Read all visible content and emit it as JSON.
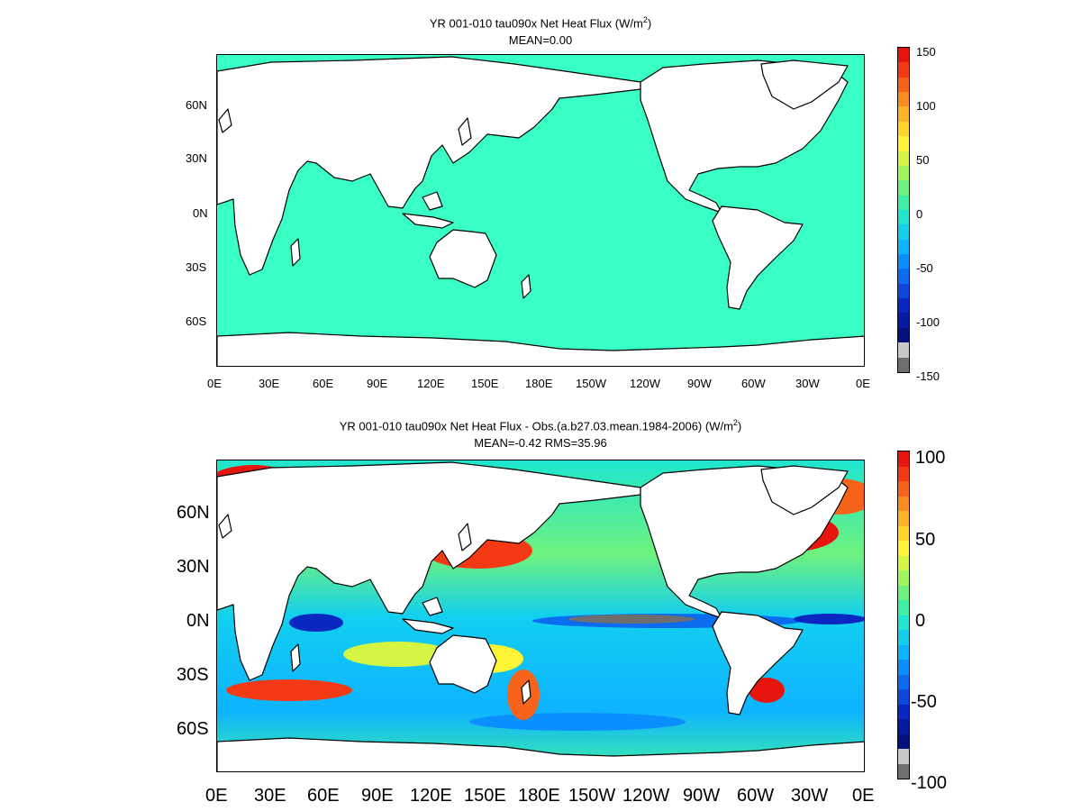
{
  "panels": [
    {
      "title_main": "YR 001-010 tau090x  Net Heat Flux (W/m",
      "title_sup": "2",
      "title_end": ")",
      "subtitle": "MEAN=0.00",
      "lat_labels": [
        "60N",
        "30N",
        "0N",
        "30S",
        "60S"
      ],
      "lon_labels": [
        "0E",
        "30E",
        "60E",
        "90E",
        "120E",
        "150E",
        "180E",
        "150W",
        "120W",
        "90W",
        "60W",
        "30W",
        "0E"
      ],
      "colorbar_labels": [
        "150",
        "100",
        "50",
        "0",
        "-50",
        "-100",
        "-150"
      ]
    },
    {
      "title_main": "YR 001-010 tau090x  Net Heat Flux - Obs.(a.b27.03.mean.1984-2006) (W/m",
      "title_sup": "2",
      "title_end": ")",
      "subtitle": "MEAN=-0.42 RMS=35.96",
      "lat_labels": [
        "60N",
        "30N",
        "0N",
        "30S",
        "60S"
      ],
      "lon_labels": [
        "0E",
        "30E",
        "60E",
        "90E",
        "120E",
        "150E",
        "180E",
        "150W",
        "120W",
        "90W",
        "60W",
        "30W",
        "0E"
      ],
      "colorbar_labels": [
        "100",
        "50",
        "0",
        "-50",
        "-100"
      ]
    }
  ],
  "colors": {
    "ocean_uniform": "#3affc4",
    "land": "#ffffff",
    "colorbar_top": [
      "#e8150f",
      "#f33a14",
      "#f7631a",
      "#fb8c21",
      "#ffb326",
      "#ffd52b",
      "#fff336",
      "#d4f542",
      "#9ff55c",
      "#6ef27d",
      "#3ff0a4",
      "#1ee6d0",
      "#12cff0",
      "#0eb3ff",
      "#0a8fff",
      "#0b6cf0",
      "#0c48db",
      "#0a28c0",
      "#061aa0",
      "#041280",
      "#c8c8c8",
      "#6e6e6e"
    ]
  }
}
